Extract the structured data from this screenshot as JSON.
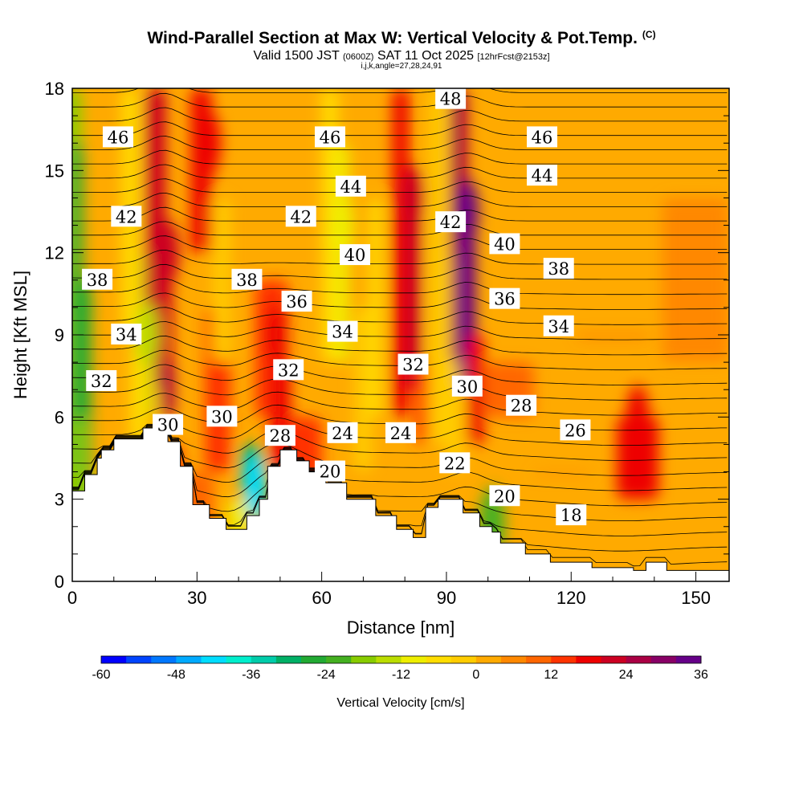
{
  "title": {
    "main": "Wind-Parallel Section at Max W: Vertical Velocity & Pot.Temp.",
    "copyright": "(C)",
    "valid_prefix": "Valid 1500 JST",
    "utc": "(0600Z)",
    "date": "SAT 11 Oct 2025",
    "forecast": "[12hrFcst@2153z]",
    "indices": "i,j,k,angle=27,28,24,91"
  },
  "chart_data": {
    "type": "heatmap",
    "title": "Wind-Parallel Section at Max W: Vertical Velocity & Pot.Temp.",
    "xlabel": "Distance [nm]",
    "ylabel": "Height [Kft MSL]",
    "xlim": [
      0,
      158
    ],
    "ylim": [
      0,
      18
    ],
    "x_ticks": [
      "0",
      "30",
      "60",
      "90",
      "120",
      "150"
    ],
    "x_tick_values": [
      0,
      30,
      60,
      90,
      120,
      150
    ],
    "y_ticks": [
      "0",
      "3",
      "6",
      "9",
      "12",
      "15",
      "18"
    ],
    "y_tick_values": [
      0,
      3,
      6,
      9,
      12,
      15,
      18
    ],
    "colorbar": {
      "label": "Vertical Velocity [cm/s]",
      "tick_labels": [
        "-60",
        "-48",
        "-36",
        "-24",
        "-12",
        "0",
        "12",
        "24",
        "36"
      ],
      "min": -60,
      "max": 36,
      "step": 4,
      "colors": [
        "#0000ff",
        "#0044ff",
        "#0077ff",
        "#00aaff",
        "#00ddff",
        "#00eecc",
        "#00ccaa",
        "#00b066",
        "#22aa33",
        "#44b020",
        "#88cc00",
        "#bbdd00",
        "#eeee00",
        "#ffdd00",
        "#ffcc00",
        "#ffaa00",
        "#ff8800",
        "#ff6600",
        "#ff3300",
        "#ee0000",
        "#cc0022",
        "#aa0044",
        "#880066",
        "#660088"
      ]
    },
    "terrain": [
      [
        0,
        3.3
      ],
      [
        3,
        3.3
      ],
      [
        3,
        3.9
      ],
      [
        6,
        3.9
      ],
      [
        6,
        4.5
      ],
      [
        7,
        4.5
      ],
      [
        7,
        4.8
      ],
      [
        10,
        4.8
      ],
      [
        10,
        5.2
      ],
      [
        17,
        5.2
      ],
      [
        17,
        5.6
      ],
      [
        23,
        5.6
      ],
      [
        23,
        5.1
      ],
      [
        26,
        5.1
      ],
      [
        26,
        4.2
      ],
      [
        29,
        4.2
      ],
      [
        29,
        2.8
      ],
      [
        33,
        2.8
      ],
      [
        33,
        2.3
      ],
      [
        37,
        2.3
      ],
      [
        37,
        1.9
      ],
      [
        42,
        1.9
      ],
      [
        42,
        2.4
      ],
      [
        45,
        2.4
      ],
      [
        45,
        3.0
      ],
      [
        47,
        3.0
      ],
      [
        47,
        4.2
      ],
      [
        50,
        4.2
      ],
      [
        50,
        4.8
      ],
      [
        54,
        4.8
      ],
      [
        54,
        4.4
      ],
      [
        57,
        4.4
      ],
      [
        57,
        4.0
      ],
      [
        61,
        4.0
      ],
      [
        61,
        3.6
      ],
      [
        66,
        3.6
      ],
      [
        66,
        3.0
      ],
      [
        73,
        3.0
      ],
      [
        73,
        2.4
      ],
      [
        78,
        2.4
      ],
      [
        78,
        1.9
      ],
      [
        82,
        1.9
      ],
      [
        82,
        1.6
      ],
      [
        85,
        1.6
      ],
      [
        85,
        2.7
      ],
      [
        88,
        2.7
      ],
      [
        88,
        3.0
      ],
      [
        94,
        3.0
      ],
      [
        94,
        2.5
      ],
      [
        98,
        2.5
      ],
      [
        98,
        2.0
      ],
      [
        101,
        2.0
      ],
      [
        101,
        1.8
      ],
      [
        103,
        1.8
      ],
      [
        103,
        1.4
      ],
      [
        109,
        1.4
      ],
      [
        109,
        1.0
      ],
      [
        115,
        1.0
      ],
      [
        115,
        0.7
      ],
      [
        125,
        0.7
      ],
      [
        125,
        0.5
      ],
      [
        135,
        0.5
      ],
      [
        135,
        0.4
      ],
      [
        138,
        0.4
      ],
      [
        138,
        0.7
      ],
      [
        143,
        0.7
      ],
      [
        143,
        0.4
      ],
      [
        158,
        0.4
      ]
    ],
    "vertical_velocity_features": [
      {
        "x": 2,
        "y": 10,
        "w": -28,
        "note": "downdraft column"
      },
      {
        "x": 18,
        "y": 9,
        "w": -14,
        "note": "downdraft column"
      },
      {
        "x": 23,
        "y": 12,
        "w": 22,
        "note": "updraft column"
      },
      {
        "x": 33,
        "y": 16,
        "w": 18,
        "note": "updraft column"
      },
      {
        "x": 44,
        "y": 3.5,
        "w": -44,
        "note": "downslope minimum"
      },
      {
        "x": 49,
        "y": 9,
        "w": 18,
        "note": "updraft"
      },
      {
        "x": 65,
        "y": 13,
        "w": -10,
        "note": "downdraft column"
      },
      {
        "x": 82,
        "y": 14,
        "w": 22,
        "note": "updraft column"
      },
      {
        "x": 95,
        "y": 13.5,
        "w": 32,
        "note": "updraft maximum"
      },
      {
        "x": 101,
        "y": 2.3,
        "w": -22,
        "note": "downslope minimum"
      },
      {
        "x": 136,
        "y": 6,
        "w": 16,
        "note": "updraft"
      }
    ],
    "theta_contour_labels": [
      {
        "value": 48,
        "text": "48",
        "x": 91,
        "y": 17.6
      },
      {
        "value": 46,
        "text": "46",
        "x": 11,
        "y": 16.2
      },
      {
        "value": 46,
        "text": "46",
        "x": 62,
        "y": 16.2
      },
      {
        "value": 46,
        "text": "46",
        "x": 113,
        "y": 16.2
      },
      {
        "value": 44,
        "text": "44",
        "x": 67,
        "y": 14.4
      },
      {
        "value": 44,
        "text": "44",
        "x": 113,
        "y": 14.8
      },
      {
        "value": 42,
        "text": "42",
        "x": 13,
        "y": 13.3
      },
      {
        "value": 42,
        "text": "42",
        "x": 55,
        "y": 13.3
      },
      {
        "value": 42,
        "text": "42",
        "x": 91,
        "y": 13.1
      },
      {
        "value": 40,
        "text": "40",
        "x": 68,
        "y": 11.9
      },
      {
        "value": 40,
        "text": "40",
        "x": 104,
        "y": 12.3
      },
      {
        "value": 38,
        "text": "38",
        "x": 6,
        "y": 11.0
      },
      {
        "value": 38,
        "text": "38",
        "x": 42,
        "y": 11.0
      },
      {
        "value": 38,
        "text": "38",
        "x": 117,
        "y": 11.4
      },
      {
        "value": 36,
        "text": "36",
        "x": 54,
        "y": 10.2
      },
      {
        "value": 36,
        "text": "36",
        "x": 104,
        "y": 10.3
      },
      {
        "value": 34,
        "text": "34",
        "x": 13,
        "y": 9.0
      },
      {
        "value": 34,
        "text": "34",
        "x": 65,
        "y": 9.1
      },
      {
        "value": 34,
        "text": "34",
        "x": 117,
        "y": 9.3
      },
      {
        "value": 32,
        "text": "32",
        "x": 7,
        "y": 7.3
      },
      {
        "value": 32,
        "text": "32",
        "x": 52,
        "y": 7.7
      },
      {
        "value": 32,
        "text": "32",
        "x": 82,
        "y": 7.9
      },
      {
        "value": 30,
        "text": "30",
        "x": 36,
        "y": 6.0
      },
      {
        "value": 30,
        "text": "30",
        "x": 23,
        "y": 5.7
      },
      {
        "value": 30,
        "text": "30",
        "x": 95,
        "y": 7.1
      },
      {
        "value": 28,
        "text": "28",
        "x": 50,
        "y": 5.3
      },
      {
        "value": 28,
        "text": "28",
        "x": 108,
        "y": 6.4
      },
      {
        "value": 26,
        "text": "26",
        "x": 121,
        "y": 5.5
      },
      {
        "value": 24,
        "text": "24",
        "x": 65,
        "y": 5.4
      },
      {
        "value": 24,
        "text": "24",
        "x": 79,
        "y": 5.4
      },
      {
        "value": 22,
        "text": "22",
        "x": 92,
        "y": 4.3
      },
      {
        "value": 20,
        "text": "20",
        "x": 62,
        "y": 4.0
      },
      {
        "value": 20,
        "text": "20",
        "x": 104,
        "y": 3.1
      },
      {
        "value": 18,
        "text": "18",
        "x": 120,
        "y": 2.4
      }
    ]
  }
}
